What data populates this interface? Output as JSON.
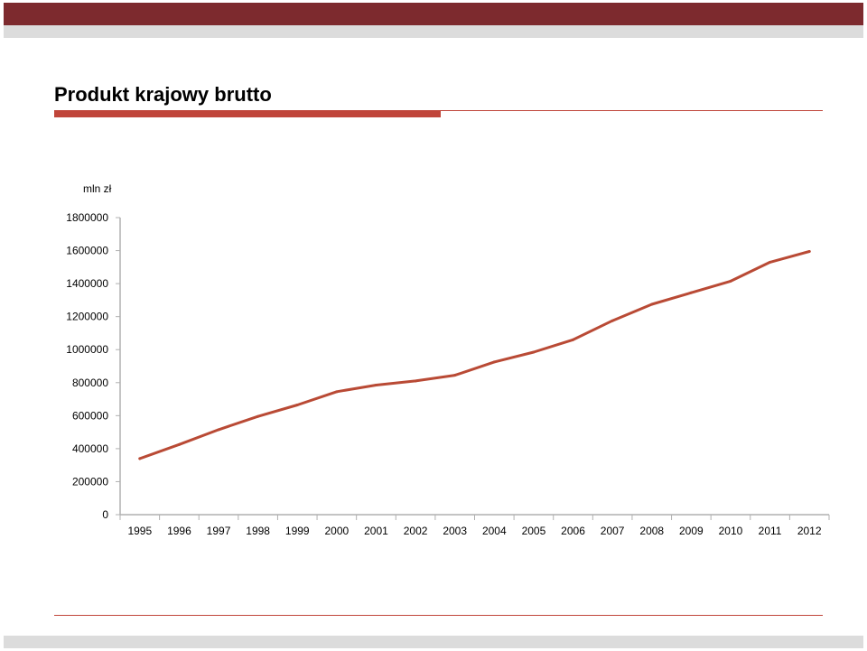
{
  "slide": {
    "title": "Produkt krajowy brutto"
  },
  "colors": {
    "top_band": "#7d2a2e",
    "gray_band": "#dcdcdc",
    "accent": "#c0453a",
    "series_line": "#b94a35",
    "axis": "#b0b0b0"
  },
  "chart_data": {
    "type": "line",
    "title": "",
    "ylabel": "mln zł",
    "xlabel": "",
    "ylim": [
      0,
      1800000
    ],
    "yticks": [
      0,
      200000,
      400000,
      600000,
      800000,
      1000000,
      1200000,
      1400000,
      1600000,
      1800000
    ],
    "ytick_labels": [
      "0",
      "200000",
      "400000",
      "600000",
      "800000",
      "1000000",
      "1200000",
      "1400000",
      "1600000",
      "1800000"
    ],
    "grid": false,
    "legend": "none",
    "categories": [
      "1995",
      "1996",
      "1997",
      "1998",
      "1999",
      "2000",
      "2001",
      "2002",
      "2003",
      "2004",
      "2005",
      "2006",
      "2007",
      "2008",
      "2009",
      "2010",
      "2011",
      "2012"
    ],
    "series": [
      {
        "values": [
          340000,
          425000,
          515000,
          595000,
          665000,
          745000,
          785000,
          810000,
          845000,
          925000,
          985000,
          1060000,
          1175000,
          1275000,
          1345000,
          1415000,
          1530000,
          1595000
        ]
      }
    ]
  }
}
